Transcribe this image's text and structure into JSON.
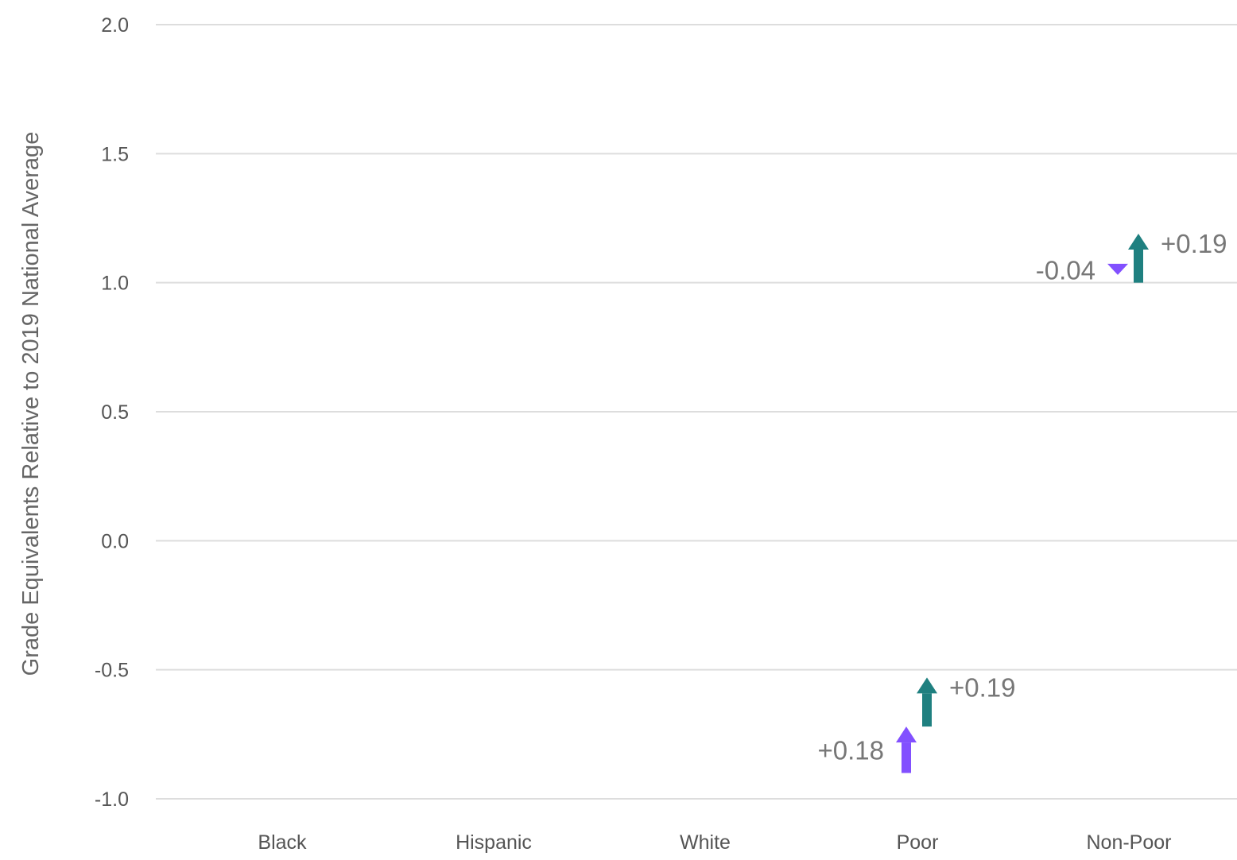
{
  "chart_data": {
    "type": "arrow",
    "title": "",
    "xlabel": "",
    "ylabel": "Grade Equivalents Relative to 2019 National Average",
    "ylim": [
      -1.0,
      2.0
    ],
    "yticks": [
      "2.0",
      "1.5",
      "1.0",
      "0.5",
      "0.0",
      "-0.5",
      "-1.0"
    ],
    "grid": true,
    "categories": [
      "Black",
      "Hispanic",
      "White",
      "Poor",
      "Non-Poor"
    ],
    "series": [
      {
        "color": "#8250ff",
        "arrows": [
          {
            "category": "Poor",
            "from": -0.9,
            "to": -0.72,
            "label": "+0.18"
          },
          {
            "category": "Non-Poor",
            "from": 1.07,
            "to": 1.03,
            "label": "-0.04"
          }
        ]
      },
      {
        "color": "#1f8080",
        "arrows": [
          {
            "category": "Poor",
            "from": -0.72,
            "to": -0.53,
            "label": "+0.19"
          },
          {
            "category": "Non-Poor",
            "from": 1.0,
            "to": 1.19,
            "label": "+0.19"
          }
        ]
      }
    ]
  }
}
